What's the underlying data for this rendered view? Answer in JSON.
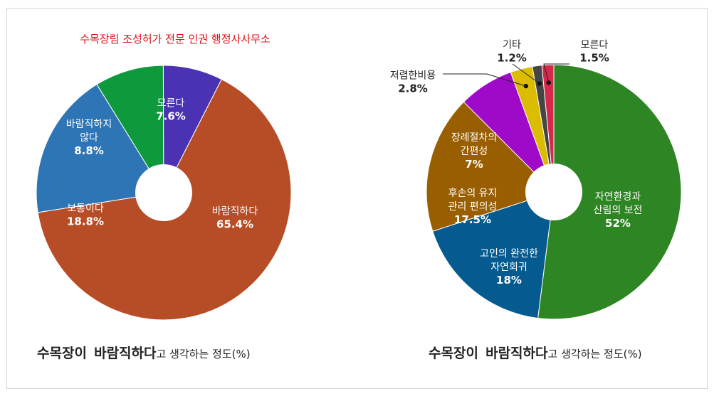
{
  "chart_data": [
    {
      "type": "pie",
      "title": "수목장림 조성허가 전문 인권 행정사사무소",
      "caption": {
        "part1": "수목장이",
        "part2": "바람직하다",
        "part3": "고 생각하는 정도(%)"
      },
      "slices": [
        {
          "name": "바람직하다",
          "value": 65.4,
          "label_lines": [
            "바람직하다"
          ],
          "value_label": "65.4%",
          "color": "#b74d26"
        },
        {
          "name": "보통이다",
          "value": 18.8,
          "label_lines": [
            "보통이다"
          ],
          "value_label": "18.8%",
          "color": "#2e75b6"
        },
        {
          "name": "바람직하지 않다",
          "value": 8.8,
          "label_lines": [
            "바람직하지",
            "않다"
          ],
          "value_label": "8.8%",
          "color": "#0e9a3c"
        },
        {
          "name": "모른다",
          "value": 7.6,
          "label_lines": [
            "모른다"
          ],
          "value_label": "7.6%",
          "color": "#4b32b3"
        }
      ]
    },
    {
      "type": "pie",
      "caption": {
        "part1": "수목장이",
        "part2": "바람직하다",
        "part3": "고 생각하는 정도(%)"
      },
      "slices": [
        {
          "name": "자연환경과 산림의 보전",
          "value": 52,
          "label_lines": [
            "자연환경과",
            "산림의 보전"
          ],
          "value_label": "52%",
          "color": "#2e8523"
        },
        {
          "name": "고인의 완전한 자연회귀",
          "value": 18,
          "label_lines": [
            "고인의 완전한",
            "자연회귀"
          ],
          "value_label": "18%",
          "color": "#055a8f"
        },
        {
          "name": "후손의 유지 관리 편의성",
          "value": 17.5,
          "label_lines": [
            "후손의 유지",
            "관리 편의성"
          ],
          "value_label": "17.5%",
          "color": "#995e00"
        },
        {
          "name": "장례절차의 간편성",
          "value": 7,
          "label_lines": [
            "장례절차의",
            "간편성"
          ],
          "value_label": "7%",
          "color": "#9f0ac9"
        },
        {
          "name": "저렴한비용",
          "value": 2.8,
          "label_lines": [
            "저렴한비용"
          ],
          "value_label": "2.8%",
          "color": "#dcbc00"
        },
        {
          "name": "기타",
          "value": 1.2,
          "label_lines": [
            "기타"
          ],
          "value_label": "1.2%",
          "color": "#454545"
        },
        {
          "name": "모른다",
          "value": 1.5,
          "label_lines": [
            "모른다"
          ],
          "value_label": "1.5%",
          "color": "#d6284a"
        }
      ]
    }
  ]
}
